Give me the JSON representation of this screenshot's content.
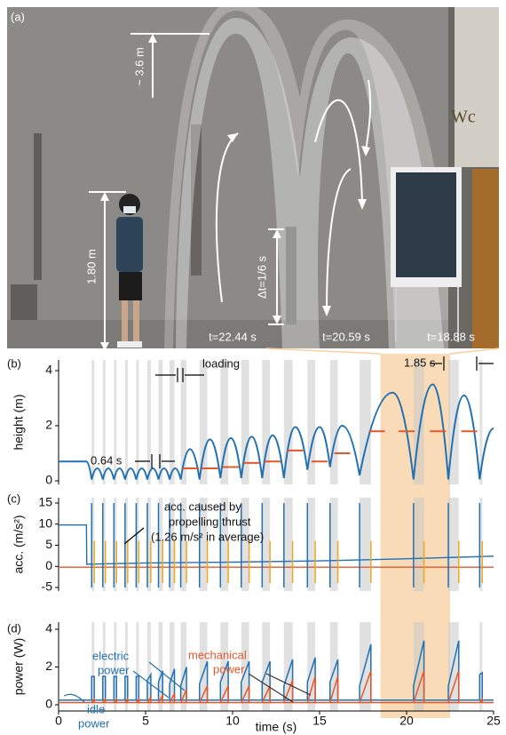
{
  "photo": {
    "panel": "(a)",
    "height_max": "~ 3.6 m",
    "person_height": "1.80 m",
    "interval": "Δt=1/6 s",
    "t1": "t=22.44 s",
    "t2": "t=20.59 s",
    "t3": "t=18.88 s",
    "sign": "Wc"
  },
  "chart_data": [
    {
      "type": "line",
      "panel": "(b)",
      "ylabel": "height (m)",
      "xlim": [
        0,
        25
      ],
      "xticks": [
        0,
        5,
        10,
        15,
        20,
        25
      ],
      "ylim": [
        0,
        4
      ],
      "yticks": [
        0,
        2,
        4
      ],
      "highlight": [
        18.5,
        22.5
      ],
      "highlight_color": "#f8cf9f",
      "series": [
        {
          "color": "#2271b3",
          "x": [
            0,
            1.6,
            1.9,
            2.22,
            2.54,
            2.86,
            3.18,
            3.5,
            3.82,
            4.14,
            4.46,
            4.78,
            5.1,
            5.42,
            5.74,
            6.06,
            6.38,
            6.7,
            7.02,
            7.55,
            8.1,
            8.7,
            9.3,
            9.9,
            10.5,
            11.1,
            11.7,
            12.3,
            12.95,
            13.6,
            14.3,
            15.0,
            15.6,
            16.3,
            17.3,
            19.2,
            20.4,
            21.5,
            22.4,
            23.3,
            24.2,
            25
          ],
          "values": [
            0.7,
            0.7,
            0.05,
            0.45,
            0.05,
            0.45,
            0.05,
            0.45,
            0.05,
            0.45,
            0.05,
            0.45,
            0.05,
            0.45,
            0.05,
            0.45,
            0.05,
            0.45,
            0.05,
            1.15,
            0.05,
            1.5,
            0.1,
            1.55,
            0.1,
            1.6,
            0.1,
            1.65,
            0.1,
            1.95,
            0.4,
            1.95,
            0.5,
            2.0,
            0.2,
            3.2,
            0.05,
            3.5,
            0.05,
            3.1,
            0.05,
            1.9
          ]
        }
      ],
      "mean_height": {
        "color": "#e2582a",
        "x": [
          7.6,
          8.7,
          9.9,
          11.1,
          12.3,
          13.6,
          15.0,
          16.3,
          18.3,
          20.0,
          21.8,
          23.6
        ],
        "values": [
          0.45,
          0.45,
          0.5,
          0.65,
          0.7,
          1.1,
          0.7,
          1.0,
          1.8,
          1.8,
          1.8,
          1.8
        ]
      },
      "annotations": {
        "loading": "loading",
        "hop_period": "1.85 s",
        "small_period": "0.64 s"
      }
    },
    {
      "type": "line",
      "panel": "(c)",
      "ylabel": "acc. (m/s²)",
      "xlim": [
        0,
        25
      ],
      "xticks": [
        0,
        5,
        10,
        15,
        20,
        25
      ],
      "ylim": [
        -5,
        15
      ],
      "yticks": [
        -5,
        0,
        5,
        10,
        15
      ],
      "series": [
        {
          "color": "#2271b3",
          "x": [
            0,
            1.6,
            1.62,
            5,
            10,
            15,
            18,
            20,
            25
          ],
          "values": [
            9.8,
            9.8,
            0.5,
            0.8,
            1.0,
            1.3,
            1.6,
            1.8,
            2.4
          ]
        },
        {
          "color": "#e2582a",
          "x": [
            0,
            25
          ],
          "values": [
            -0.2,
            -0.2
          ]
        }
      ],
      "spikes": {
        "color": "#2271b3",
        "max": 15,
        "min": -5
      },
      "aux_spikes": {
        "color": "#f0a81c",
        "max": 6,
        "min": -4
      },
      "annotations": [
        "acc. caused by",
        "propelling thrust",
        "(1.26 m/s² in average)"
      ]
    },
    {
      "type": "line",
      "panel": "(d)",
      "ylabel": "power (W)",
      "xlabel": "time (s)",
      "xlim": [
        0,
        25
      ],
      "xticks": [
        0,
        5,
        10,
        15,
        20,
        25
      ],
      "ylim": [
        0,
        4
      ],
      "yticks": [
        0,
        2,
        4
      ],
      "electric": {
        "color": "#2271b3",
        "idle": 0.25,
        "pulses": [
          [
            1.9,
            2.05,
            1.5,
            1.5
          ],
          [
            2.54,
            2.69,
            1.5,
            1.5
          ],
          [
            3.18,
            3.33,
            1.5,
            1.5
          ],
          [
            3.82,
            3.97,
            1.5,
            1.5
          ],
          [
            4.46,
            4.61,
            1.5,
            1.5
          ],
          [
            5.1,
            5.3,
            1.3,
            1.6
          ],
          [
            5.74,
            5.98,
            1.2,
            1.8
          ],
          [
            6.38,
            6.66,
            1.1,
            1.9
          ],
          [
            7.02,
            7.35,
            1.0,
            2.0
          ],
          [
            8.1,
            8.55,
            1.1,
            2.3
          ],
          [
            9.3,
            9.75,
            1.2,
            2.3
          ],
          [
            10.5,
            10.95,
            1.2,
            2.3
          ],
          [
            11.7,
            12.15,
            1.2,
            2.3
          ],
          [
            12.95,
            13.45,
            1.0,
            2.4
          ],
          [
            14.3,
            14.75,
            1.2,
            2.5
          ],
          [
            15.6,
            16.05,
            1.2,
            2.4
          ],
          [
            17.3,
            17.95,
            1.0,
            3.2
          ],
          [
            20.4,
            21.0,
            1.0,
            3.4
          ],
          [
            22.4,
            23.0,
            1.0,
            3.4
          ],
          [
            24.2,
            24.35,
            1.6,
            1.7
          ]
        ]
      },
      "mechanical": {
        "color": "#e2582a",
        "idle": 0.12,
        "pulses": [
          [
            1.9,
            2.05,
            0.3
          ],
          [
            2.54,
            2.69,
            0.3
          ],
          [
            3.18,
            3.33,
            0.3
          ],
          [
            3.82,
            3.97,
            0.3
          ],
          [
            4.46,
            4.61,
            0.3
          ],
          [
            5.1,
            5.3,
            0.4
          ],
          [
            5.74,
            5.98,
            0.5
          ],
          [
            6.38,
            6.66,
            0.6
          ],
          [
            7.02,
            7.35,
            0.8
          ],
          [
            8.1,
            8.55,
            1.0
          ],
          [
            9.3,
            9.75,
            1.0
          ],
          [
            10.5,
            10.95,
            1.0
          ],
          [
            11.7,
            12.15,
            1.0
          ],
          [
            12.95,
            13.45,
            1.3
          ],
          [
            14.3,
            14.75,
            1.5
          ],
          [
            15.6,
            16.05,
            1.5
          ],
          [
            17.3,
            17.95,
            1.8
          ],
          [
            20.4,
            21.0,
            1.8
          ],
          [
            22.4,
            23.0,
            1.8
          ],
          [
            24.2,
            24.35,
            0.3
          ]
        ]
      },
      "annotations": {
        "electric": [
          "electric",
          "power"
        ],
        "mechanical": [
          "mechanical",
          "power"
        ],
        "idle": [
          "idle",
          "power"
        ]
      }
    }
  ]
}
